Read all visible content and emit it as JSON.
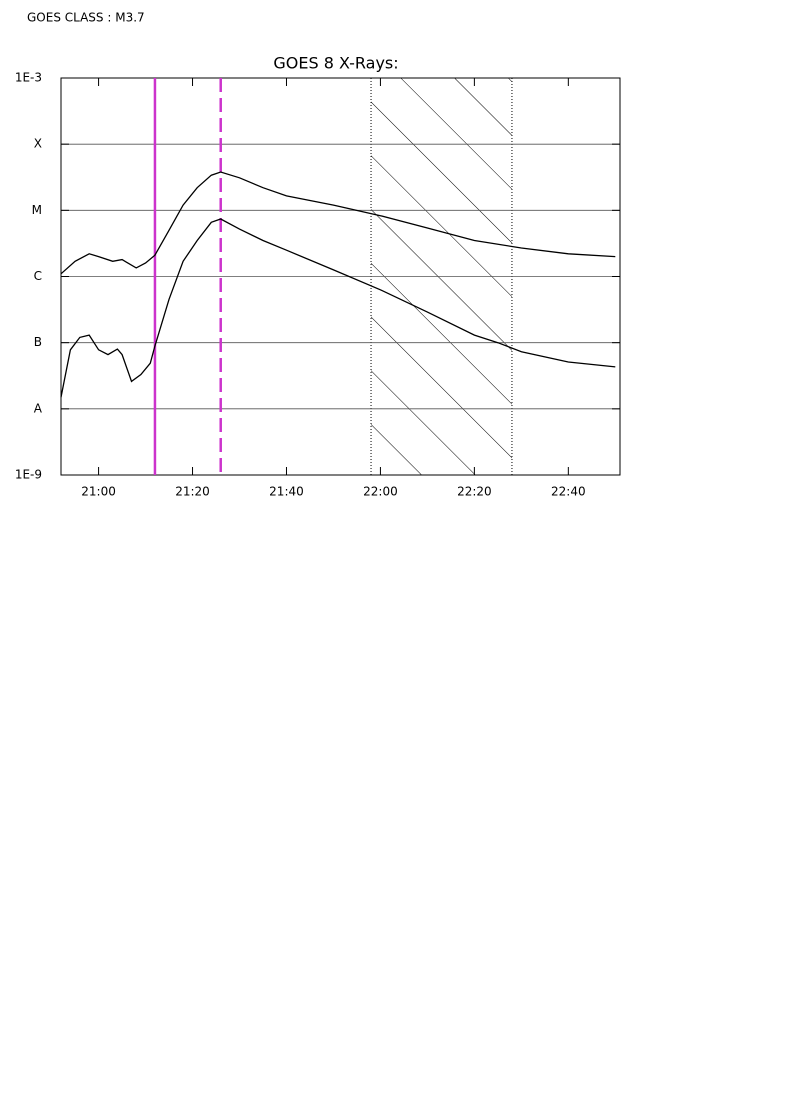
{
  "chart_data": {
    "type": "line",
    "header": "GOES CLASS : M3.7",
    "title": "GOES 8 X-Rays:",
    "log_y": true,
    "grid": true,
    "xlim": [
      "20:52",
      "22:51"
    ],
    "xticks": [
      "21:00",
      "21:20",
      "21:40",
      "22:00",
      "22:20",
      "22:40"
    ],
    "ylim": [
      1e-09,
      0.001
    ],
    "yticks": [
      {
        "value": 1e-09,
        "label": "1E-9"
      },
      {
        "value": 1e-08,
        "label": "A"
      },
      {
        "value": 1e-07,
        "label": "B"
      },
      {
        "value": 1e-06,
        "label": "C"
      },
      {
        "value": 1e-05,
        "label": "M"
      },
      {
        "value": 0.0001,
        "label": "X"
      },
      {
        "value": 0.001,
        "label": "1E-3"
      }
    ],
    "series": [
      {
        "color": "#000000",
        "x": [
          "20:52",
          "20:55",
          "20:58",
          "21:00",
          "21:03",
          "21:05",
          "21:08",
          "21:10",
          "21:12",
          "21:15",
          "21:18",
          "21:21",
          "21:24",
          "21:26",
          "21:30",
          "21:35",
          "21:40",
          "21:50",
          "22:00",
          "22:10",
          "22:20",
          "22:30",
          "22:40",
          "22:50"
        ],
        "values": [
          1.1e-06,
          1.7e-06,
          2.2e-06,
          2e-06,
          1.7e-06,
          1.8e-06,
          1.35e-06,
          1.6e-06,
          2.1e-06,
          5e-06,
          1.2e-05,
          2.2e-05,
          3.4e-05,
          3.8e-05,
          3.1e-05,
          2.2e-05,
          1.65e-05,
          1.2e-05,
          8.3e-06,
          5.4e-06,
          3.5e-06,
          2.7e-06,
          2.2e-06,
          2e-06
        ]
      },
      {
        "color": "#000000",
        "x": [
          "20:52",
          "20:54",
          "20:56",
          "20:58",
          "21:00",
          "21:02",
          "21:04",
          "21:05",
          "21:07",
          "21:09",
          "21:11",
          "21:12",
          "21:15",
          "21:18",
          "21:21",
          "21:24",
          "21:26",
          "21:30",
          "21:35",
          "21:40",
          "21:50",
          "22:00",
          "22:10",
          "22:20",
          "22:25",
          "22:30",
          "22:40",
          "22:50"
        ],
        "values": [
          1.5e-08,
          7.8e-08,
          1.2e-07,
          1.3e-07,
          7.8e-08,
          6.6e-08,
          8e-08,
          6.6e-08,
          2.6e-08,
          3.3e-08,
          4.9e-08,
          8.9e-08,
          4.5e-07,
          1.7e-06,
          3.5e-06,
          6.6e-06,
          7.4e-06,
          5.2e-06,
          3.5e-06,
          2.5e-06,
          1.26e-06,
          6.3e-07,
          2.9e-07,
          1.3e-07,
          1e-07,
          7.3e-08,
          5.1e-08,
          4.3e-08
        ]
      }
    ],
    "vlines": [
      {
        "x": "21:12",
        "color": "#cc33cc",
        "style": "solid"
      },
      {
        "x": "21:26",
        "color": "#cc33cc",
        "style": "dashed"
      }
    ],
    "shaded_region": {
      "x": [
        "21:58",
        "22:28"
      ],
      "color": "#000000",
      "border": "dotted"
    }
  }
}
